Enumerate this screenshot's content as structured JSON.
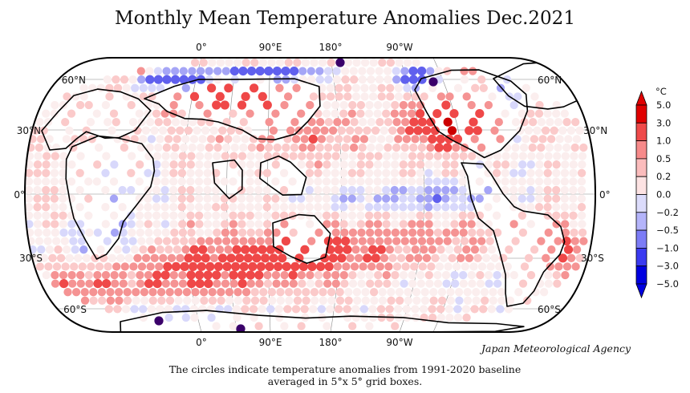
{
  "title": "Monthly Mean Temperature Anomalies Dec.2021",
  "agency": "Japan Meteorological Agency",
  "caption": {
    "line1": "The circles indicate temperature anomalies from 1991-2020 baseline",
    "line2": "averaged in 5°x 5° grid boxes."
  },
  "longitude_labels": [
    "0°",
    "90°E",
    "180°",
    "90°W"
  ],
  "latitude_labels": [
    "60°N",
    "30°N",
    "0°",
    "30°S",
    "60°S"
  ],
  "colorbar": {
    "unit": "°C",
    "ticks": [
      "5.0",
      "3.0",
      "1.0",
      "0.5",
      "0.2",
      "0.0",
      "−0.2",
      "−0.5",
      "−1.0",
      "−3.0",
      "−5.0"
    ],
    "colors": [
      "#e00000",
      "#ef4a4a",
      "#f78a8a",
      "#fbbcbc",
      "#fde3e3",
      "#dcdcfb",
      "#b4b4fa",
      "#7c7cf6",
      "#3a3af0",
      "#0000e0"
    ]
  },
  "anomaly_colors": {
    "extreme_warm": "#cc0000",
    "warm": "#ef4848",
    "mild_warm": "#f59393",
    "slight_warm": "#fbcaca",
    "slight_cool": "#d8d8fb",
    "mild_cool": "#a5a5f6",
    "cool": "#6060ee",
    "strong_cool": "#0000dd",
    "extreme_cool": "#3a006a"
  }
}
